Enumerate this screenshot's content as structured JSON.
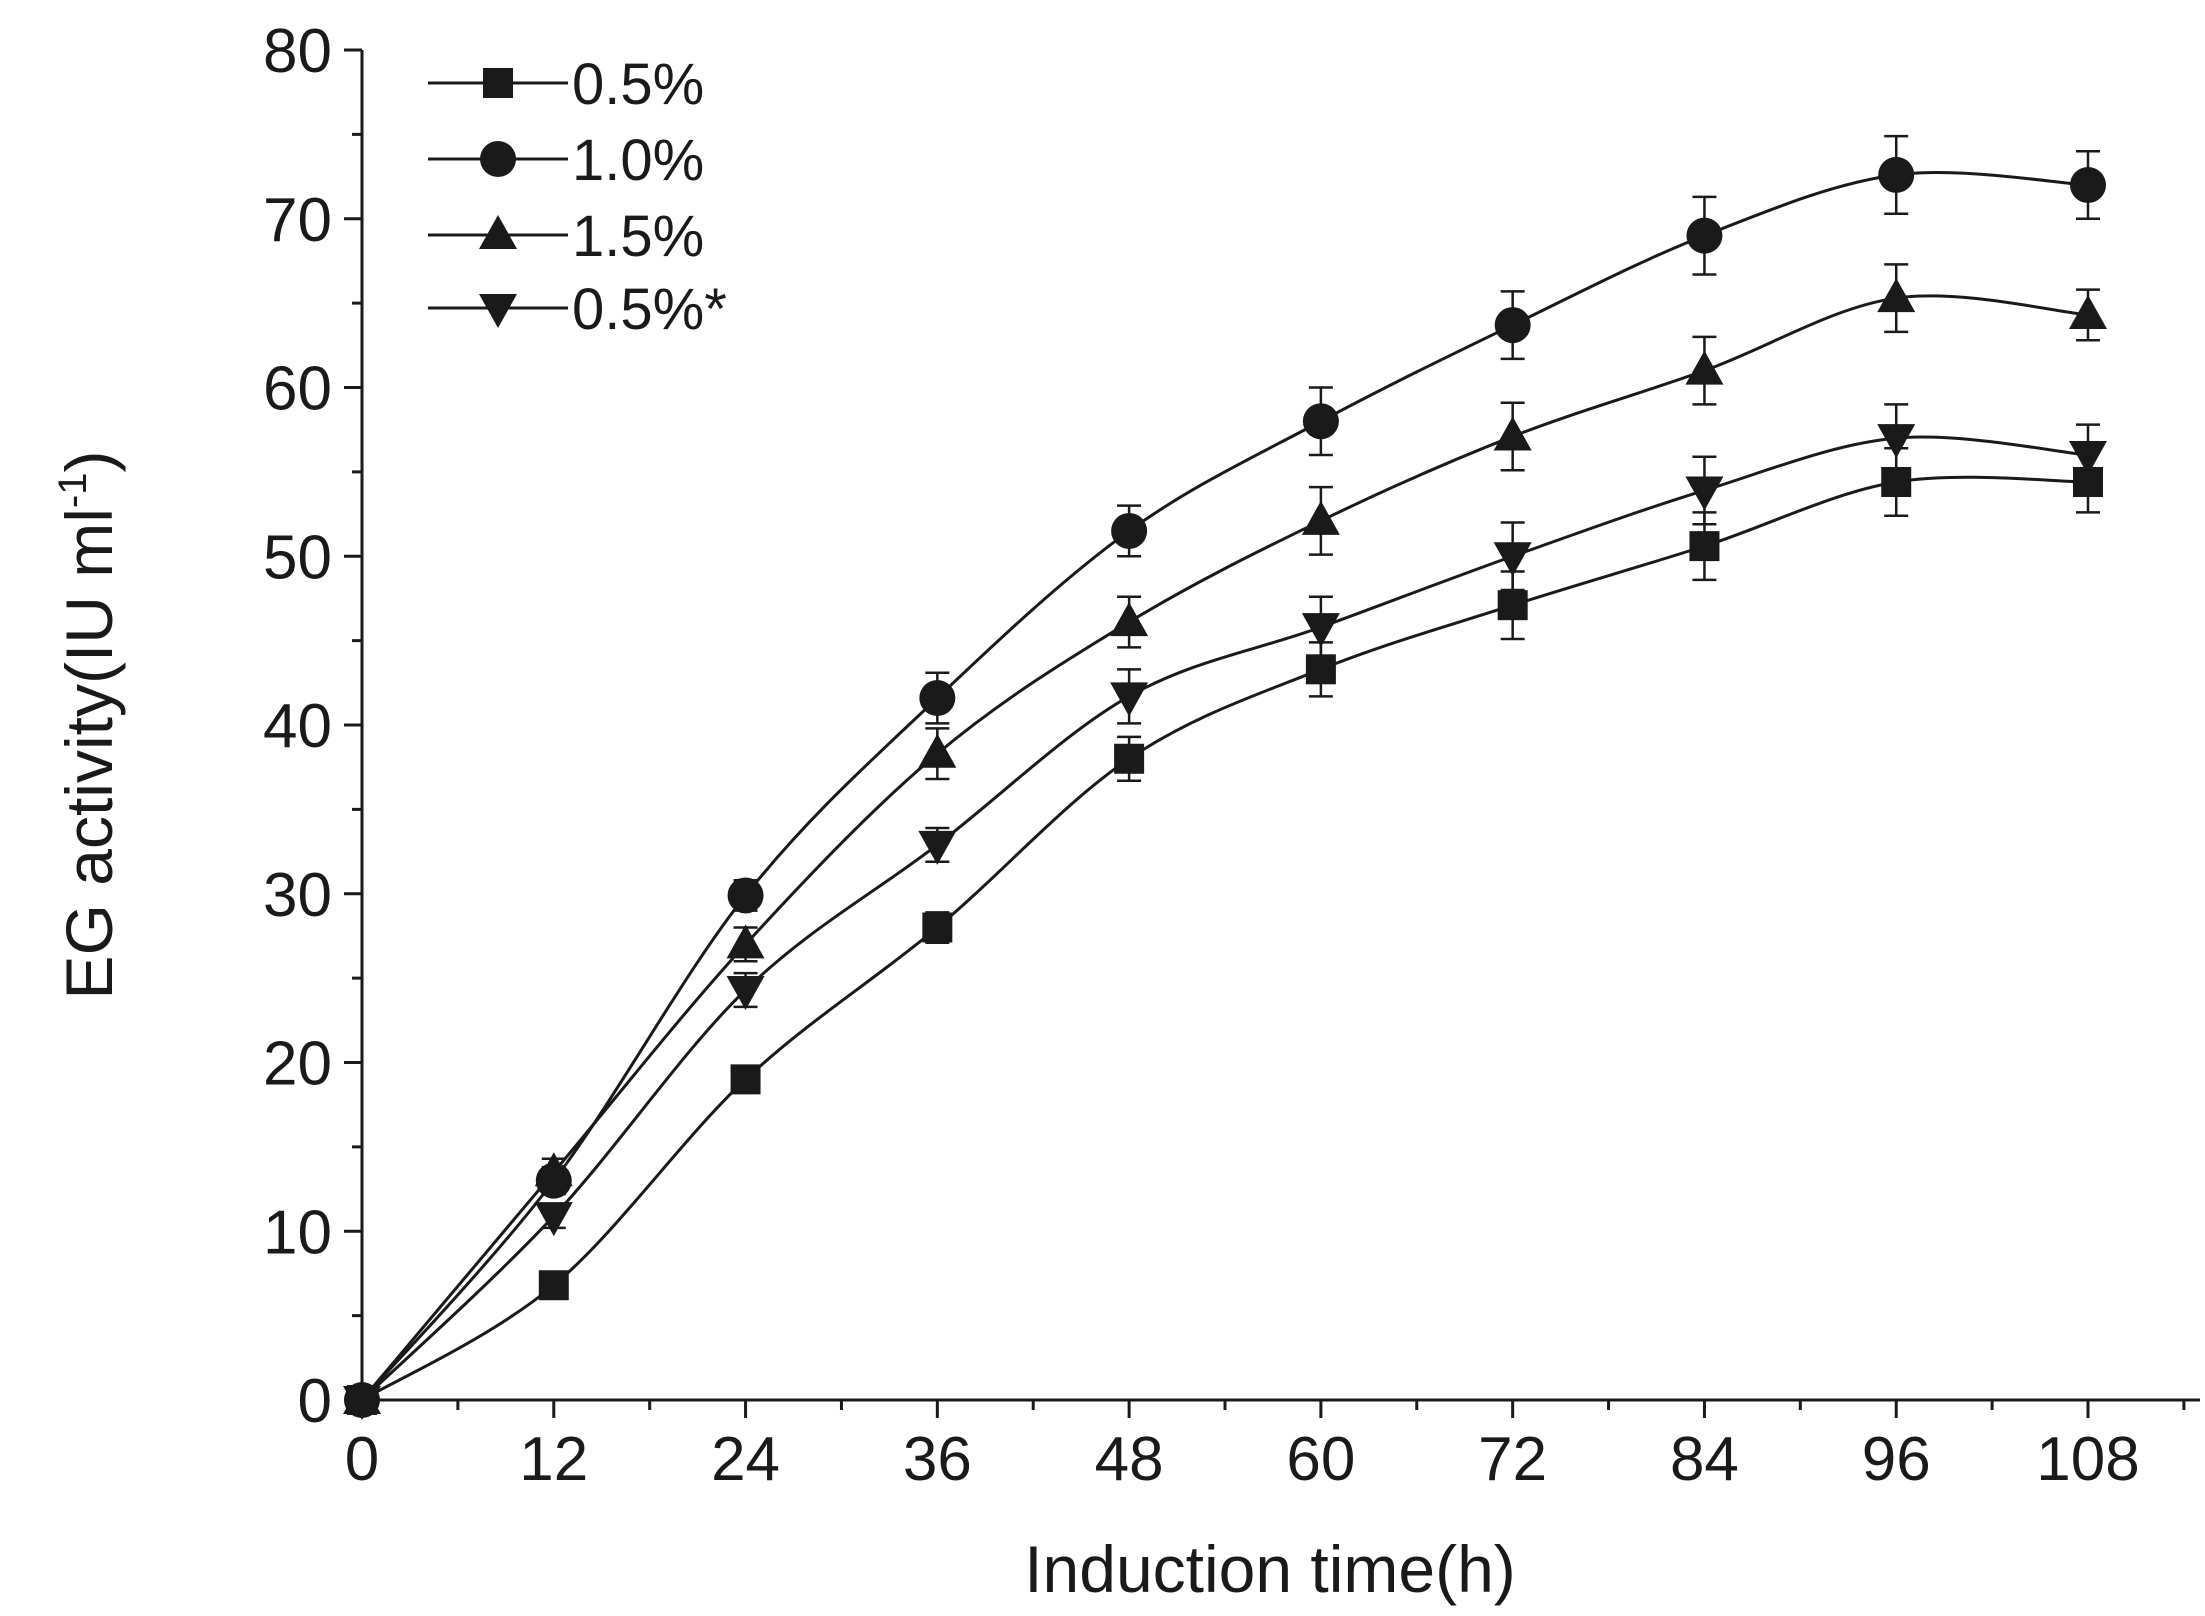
{
  "chart_data": {
    "type": "line",
    "title": "",
    "xlabel": "Induction time(h)",
    "ylabel_main": "EG activity(IU ml",
    "ylabel_sup": "-1",
    "ylabel_close": ")",
    "xlim": [
      0,
      111
    ],
    "ylim": [
      0,
      80
    ],
    "xticks": [
      0,
      12,
      24,
      36,
      48,
      60,
      72,
      84,
      96,
      108
    ],
    "yticks": [
      0,
      10,
      20,
      30,
      40,
      50,
      60,
      70,
      80
    ],
    "grid": false,
    "legend_position": "top-left",
    "x": [
      0,
      12,
      24,
      36,
      48,
      60,
      72,
      84,
      96,
      108
    ],
    "series": [
      {
        "name": "0.5%",
        "marker": "square",
        "values": [
          0,
          6.8,
          19,
          28,
          38,
          43.3,
          47.1,
          50.6,
          54.4,
          54.4
        ],
        "errors": [
          0,
          0.7,
          0.8,
          0.9,
          1.3,
          1.6,
          2,
          2,
          2,
          1.8
        ]
      },
      {
        "name": "1.0%",
        "marker": "circle",
        "values": [
          0,
          13,
          29.9,
          41.6,
          51.5,
          58,
          63.7,
          69,
          72.6,
          72
        ],
        "errors": [
          0,
          0.8,
          0.9,
          1.5,
          1.5,
          2,
          2,
          2.3,
          2.3,
          2
        ]
      },
      {
        "name": "1.5%",
        "marker": "triangle-up",
        "values": [
          0,
          13.5,
          27,
          38.3,
          46.1,
          52.1,
          57.1,
          61,
          65.3,
          64.3
        ],
        "errors": [
          0,
          0.8,
          1,
          1.5,
          1.5,
          2,
          2,
          2,
          2,
          1.5
        ]
      },
      {
        "name": "0.5%*",
        "marker": "triangle-down",
        "values": [
          0,
          10.9,
          24.3,
          32.9,
          41.7,
          45.8,
          50,
          53.9,
          57,
          56
        ],
        "errors": [
          0,
          0.7,
          1,
          1,
          1.6,
          1.8,
          2,
          2,
          2,
          1.8
        ]
      }
    ]
  }
}
